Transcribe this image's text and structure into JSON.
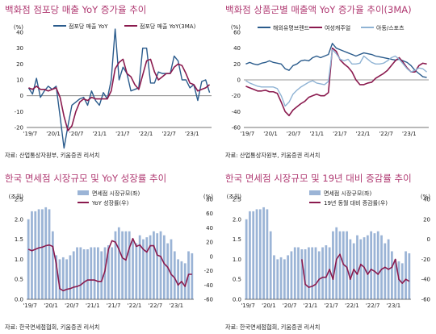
{
  "colors": {
    "title": "#b03a72",
    "navy": "#2a5b8c",
    "maroon": "#8a1a4e",
    "light_blue": "#8fb3d4",
    "bar": "#9bb4d6",
    "grid_zero": "#777777"
  },
  "chart_data": [
    {
      "id": "c1",
      "type": "line",
      "title": "백화점 점포당 매출 YoY 증가율 추이",
      "y_unit": "(%)",
      "source": "자료: 산업통상자원부, 키움증권 리서치",
      "x_ticks": [
        "'19/7",
        "'20/1",
        "'20/7",
        "'21/1",
        "'21/7",
        "'22/1",
        "'22/7",
        "'23/1"
      ],
      "ylim": [
        -20,
        40
      ],
      "y_ticks": [
        -20,
        -10,
        0,
        10,
        20,
        30,
        40
      ],
      "legend": "top",
      "series": [
        {
          "name": "점포당 매출 YoY",
          "color": "#2a5b8c",
          "width": 1.4,
          "values": [
            5,
            1,
            11,
            -1,
            3,
            6,
            4,
            6,
            -13,
            -33,
            -19,
            -6,
            -4,
            -2,
            -1,
            -6,
            3,
            -3,
            -6,
            2,
            -2,
            10,
            42,
            10,
            18,
            14,
            3,
            4,
            5,
            30,
            30,
            8,
            8,
            15,
            14,
            14,
            14,
            25,
            22,
            10,
            10,
            5,
            7,
            -3,
            9,
            10,
            2
          ]
        },
        {
          "name": "점포당 매출 YoY(3MA)",
          "color": "#8a1a4e",
          "width": 1.6,
          "values": [
            5,
            4,
            6,
            4,
            4,
            3,
            4,
            5,
            -1,
            -13,
            -22,
            -19,
            -10,
            -4,
            -2,
            -3,
            -1,
            -2,
            -2,
            -2,
            -2,
            3,
            17,
            21,
            23,
            14,
            12,
            7,
            4,
            13,
            22,
            23,
            15,
            10,
            12,
            14,
            14,
            18,
            20,
            19,
            14,
            8,
            7,
            3,
            4,
            5,
            7
          ]
        }
      ]
    },
    {
      "id": "c2",
      "type": "line",
      "title": "백화점 상품군별 매출액 YoY 증가율 추이(3MA)",
      "y_unit": "(%)",
      "source": "자료: 산업통상자원부, 키움증권 리서치",
      "x_ticks": [
        "'19/7",
        "'20/1",
        "'20/7",
        "'21/1",
        "'21/7",
        "'22/1",
        "'22/7",
        "'23/1"
      ],
      "ylim": [
        -60,
        60
      ],
      "y_ticks": [
        -60,
        -40,
        -20,
        0,
        20,
        40,
        60
      ],
      "legend": "top",
      "series": [
        {
          "name": "해외유명브랜드",
          "color": "#2a5b8c",
          "width": 1.4,
          "values": [
            20,
            22,
            20,
            19,
            21,
            22,
            24,
            22,
            21,
            20,
            14,
            12,
            18,
            20,
            24,
            25,
            24,
            28,
            30,
            28,
            30,
            32,
            46,
            40,
            38,
            36,
            34,
            32,
            30,
            32,
            34,
            33,
            32,
            30,
            29,
            28,
            27,
            26,
            25,
            26,
            24,
            22,
            18,
            12,
            8,
            4,
            3
          ]
        },
        {
          "name": "여성캐주얼",
          "color": "#8a1a4e",
          "width": 1.6,
          "values": [
            -8,
            -10,
            -12,
            -14,
            -14,
            -13,
            -15,
            -15,
            -17,
            -28,
            -40,
            -45,
            -38,
            -34,
            -30,
            -27,
            -22,
            -20,
            -18,
            -20,
            -20,
            -16,
            40,
            36,
            25,
            20,
            16,
            10,
            0,
            -6,
            -6,
            -4,
            -3,
            2,
            5,
            8,
            12,
            18,
            24,
            28,
            22,
            15,
            10,
            10,
            18,
            21,
            20
          ]
        },
        {
          "name": "아동/스포츠",
          "color": "#8fb3d4",
          "width": 1.4,
          "values": [
            -1,
            -4,
            -6,
            -8,
            -9,
            -9,
            -9,
            -9,
            -11,
            -20,
            -33,
            -28,
            -18,
            -13,
            -9,
            -6,
            -3,
            -1,
            -4,
            -5,
            -6,
            -2,
            38,
            33,
            26,
            24,
            26,
            20,
            20,
            21,
            30,
            26,
            22,
            20,
            20,
            21,
            24,
            28,
            30,
            26,
            20,
            14,
            10,
            12,
            15,
            14,
            10
          ]
        }
      ]
    },
    {
      "id": "c3",
      "type": "bar+line",
      "title": "한국 면세점 시장규모 및 YoY 성장률 추이",
      "y_unit_left": "(조원)",
      "y_unit_right": "(%)",
      "source": "자료: 한국면세점협회, 키움증권 리서치",
      "x_ticks": [
        "'19/7",
        "'20/1",
        "'20/7",
        "'21/1",
        "'21/7",
        "'22/1",
        "'22/7",
        "'23/1"
      ],
      "ylim_left": [
        0,
        2.5
      ],
      "y_ticks_left": [
        0.0,
        0.5,
        1.0,
        1.5,
        2.0,
        2.5
      ],
      "ylim_right": [
        -60,
        80
      ],
      "y_ticks_right": [
        -60,
        -40,
        -20,
        0,
        20,
        40,
        60,
        80
      ],
      "legend": "top",
      "series": [
        {
          "name": "면세점 시장규모(좌)",
          "kind": "bar",
          "axis": "left",
          "color": "#9bb4d6",
          "values": [
            2.0,
            2.2,
            2.2,
            2.25,
            2.25,
            2.3,
            2.25,
            1.7,
            1.1,
            1.0,
            1.05,
            1.0,
            1.1,
            1.2,
            1.3,
            1.3,
            1.25,
            1.25,
            1.3,
            1.3,
            1.3,
            1.2,
            1.3,
            1.35,
            1.3,
            1.7,
            1.8,
            1.7,
            1.7,
            1.7,
            1.5,
            1.4,
            1.6,
            1.5,
            1.55,
            1.6,
            1.7,
            1.65,
            1.7,
            1.6,
            1.4,
            1.5,
            1.2,
            1.0,
            0.95,
            0.9,
            1.2,
            1.15
          ]
        },
        {
          "name": "YoY 성장률(우)",
          "kind": "line",
          "axis": "right",
          "color": "#8a1a4e",
          "values": [
            10,
            8,
            10,
            12,
            13,
            15,
            16,
            14,
            -10,
            -45,
            -48,
            -46,
            -45,
            -43,
            -42,
            -40,
            -36,
            -33,
            -33,
            -33,
            -35,
            -35,
            -20,
            10,
            22,
            20,
            10,
            -2,
            -5,
            12,
            25,
            14,
            16,
            10,
            6,
            15,
            15,
            2,
            0,
            -10,
            -15,
            -25,
            -30,
            -40,
            -35,
            -42,
            -25,
            -25
          ]
        }
      ]
    },
    {
      "id": "c4",
      "type": "bar+line",
      "title": "한국 면세점 시장규모 및 19년 대비 증감률 추이",
      "y_unit_left": "(조원)",
      "y_unit_right": "(%)",
      "source": "자료: 한국면세점협회, 키움증권 리서치",
      "x_ticks": [
        "'19/7",
        "'20/1",
        "'20/7",
        "'21/1",
        "'21/7",
        "'22/1",
        "'22/7",
        "'23/1"
      ],
      "ylim_left": [
        0,
        2.5
      ],
      "y_ticks_left": [
        0.0,
        0.5,
        1.0,
        1.5,
        2.0,
        2.5
      ],
      "ylim_right": [
        -60,
        40
      ],
      "y_ticks_right": [
        -60,
        -40,
        -20,
        0,
        20,
        40
      ],
      "legend": "top",
      "series": [
        {
          "name": "면세점 시장규모(좌)",
          "kind": "bar",
          "axis": "left",
          "color": "#9bb4d6",
          "values": [
            2.0,
            2.2,
            2.2,
            2.25,
            2.25,
            2.3,
            2.25,
            1.7,
            1.1,
            1.0,
            1.05,
            1.0,
            1.1,
            1.2,
            1.3,
            1.3,
            1.25,
            1.25,
            1.3,
            1.3,
            1.3,
            1.2,
            1.3,
            1.35,
            1.3,
            1.7,
            1.8,
            1.7,
            1.7,
            1.7,
            1.5,
            1.4,
            1.6,
            1.5,
            1.55,
            1.6,
            1.7,
            1.65,
            1.7,
            1.6,
            1.4,
            1.5,
            1.2,
            1.0,
            0.95,
            0.9,
            1.2,
            1.15
          ]
        },
        {
          "name": "19년 동월 대비 증감률(우)",
          "kind": "line",
          "axis": "right",
          "color": "#8a1a4e",
          "values": [
            null,
            null,
            null,
            null,
            null,
            null,
            null,
            null,
            null,
            null,
            null,
            null,
            null,
            null,
            null,
            null,
            -20,
            -45,
            -48,
            -47,
            -45,
            -40,
            -38,
            -38,
            -30,
            -40,
            -20,
            -15,
            -25,
            -28,
            -40,
            -30,
            -35,
            -25,
            -28,
            -35,
            -30,
            -32,
            -35,
            -30,
            -28,
            -30,
            -28,
            -20,
            -40,
            -44,
            -40,
            -42
          ]
        }
      ]
    }
  ]
}
